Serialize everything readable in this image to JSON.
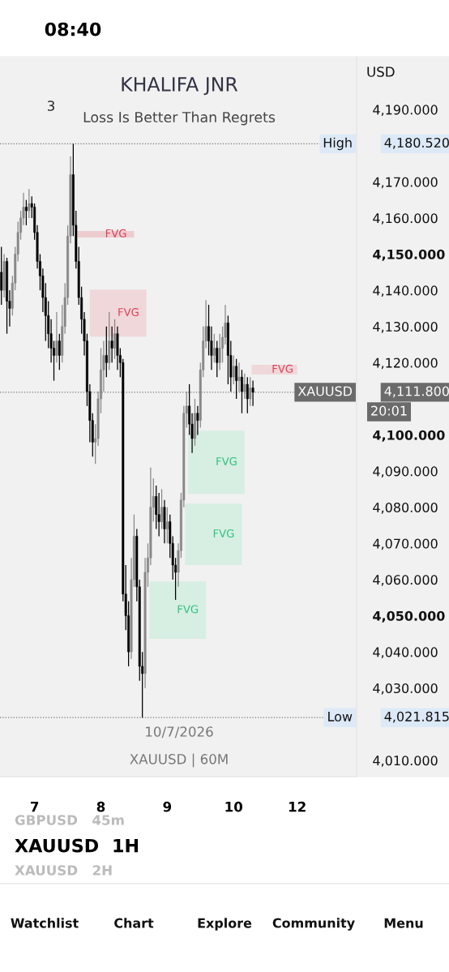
{
  "chart_data": {
    "type": "candlestick",
    "title": "KHALIFA JNR",
    "subtitle": "Loss Is Better Than Regrets",
    "categories": [
      null,
      null,
      null,
      null,
      null,
      null,
      null,
      null,
      null,
      null,
      null,
      null,
      "7",
      null,
      null,
      null,
      null,
      null,
      null,
      null,
      null,
      null,
      null,
      null,
      null,
      null,
      null,
      null,
      null,
      null,
      null,
      null,
      null,
      null,
      null,
      null,
      "8",
      null,
      null,
      null,
      null,
      null,
      null,
      null,
      null,
      null,
      null,
      null,
      null,
      null,
      null,
      null,
      null,
      null,
      null,
      null,
      null,
      null,
      null,
      null,
      "9",
      null,
      null,
      null,
      null,
      null,
      null,
      null,
      null,
      null,
      null,
      null,
      null,
      null,
      null,
      null,
      null,
      null,
      null,
      null,
      null,
      null,
      null,
      null,
      "10",
      null,
      null,
      null,
      null,
      null,
      null,
      null,
      null,
      null,
      null,
      null,
      null,
      null,
      null,
      null,
      null,
      null,
      null,
      null,
      null,
      null,
      null,
      "12",
      null,
      null,
      null,
      null,
      null,
      null,
      null,
      null,
      null,
      null,
      null,
      null,
      null,
      null,
      null,
      null,
      null,
      null,
      null,
      null,
      null
    ],
    "ohlc": [
      [
        4145,
        4152,
        4136,
        4140
      ],
      [
        4140,
        4150,
        4138,
        4148
      ],
      [
        4148,
        4149,
        4128,
        4137
      ],
      [
        4137,
        4140,
        4130,
        4135
      ],
      [
        4135,
        4144,
        4133,
        4142
      ],
      [
        4142,
        4152,
        4140,
        4150
      ],
      [
        4150,
        4159,
        4148,
        4156
      ],
      [
        4156,
        4162,
        4154,
        4160
      ],
      [
        4160,
        4167,
        4158,
        4163
      ],
      [
        4163,
        4165,
        4158,
        4162
      ],
      [
        4162,
        4168,
        4160,
        4164
      ],
      [
        4164,
        4166,
        4160,
        4163
      ],
      [
        4163,
        4164,
        4154,
        4156
      ],
      [
        4156,
        4158,
        4146,
        4148
      ],
      [
        4148,
        4150,
        4140,
        4144
      ],
      [
        4144,
        4146,
        4134,
        4138
      ],
      [
        4138,
        4142,
        4126,
        4133
      ],
      [
        4133,
        4137,
        4124,
        4128
      ],
      [
        4128,
        4132,
        4120,
        4124
      ],
      [
        4124,
        4126,
        4115,
        4122
      ],
      [
        4122,
        4134,
        4120,
        4126
      ],
      [
        4126,
        4128,
        4118,
        4122
      ],
      [
        4122,
        4136,
        4120,
        4130
      ],
      [
        4130,
        4142,
        4128,
        4138
      ],
      [
        4138,
        4158,
        4136,
        4155
      ],
      [
        4155,
        4177,
        4153,
        4172
      ],
      [
        4172,
        4180.52,
        4155,
        4158
      ],
      [
        4158,
        4162,
        4146,
        4148
      ],
      [
        4148,
        4152,
        4136,
        4138
      ],
      [
        4138,
        4141,
        4128,
        4132
      ],
      [
        4132,
        4134,
        4122,
        4126
      ],
      [
        4126,
        4128,
        4108,
        4112
      ],
      [
        4112,
        4114,
        4098,
        4104
      ],
      [
        4104,
        4106,
        4094,
        4098
      ],
      [
        4098,
        4103,
        4092,
        4099
      ],
      [
        4099,
        4112,
        4097,
        4110
      ],
      [
        4110,
        4124,
        4106,
        4118
      ],
      [
        4118,
        4126,
        4112,
        4122
      ],
      [
        4122,
        4130,
        4116,
        4120
      ],
      [
        4120,
        4134,
        4118,
        4126
      ],
      [
        4126,
        4130,
        4120,
        4124
      ],
      [
        4124,
        4132,
        4121,
        4128
      ],
      [
        4128,
        4130,
        4118,
        4122
      ],
      [
        4122,
        4124,
        4116,
        4120
      ],
      [
        4120,
        4121,
        4054,
        4056
      ],
      [
        4056,
        4064,
        4046,
        4050
      ],
      [
        4050,
        4054,
        4036,
        4040
      ],
      [
        4040,
        4066,
        4038,
        4060
      ],
      [
        4060,
        4078,
        4058,
        4072
      ],
      [
        4072,
        4074,
        4054,
        4058
      ],
      [
        4058,
        4060,
        4032,
        4036
      ],
      [
        4036,
        4040,
        4021.815,
        4034
      ],
      [
        4034,
        4066,
        4030,
        4062
      ],
      [
        4062,
        4070,
        4058,
        4066
      ],
      [
        4066,
        4091,
        4064,
        4080
      ],
      [
        4080,
        4088,
        4076,
        4083
      ],
      [
        4083,
        4086,
        4074,
        4078
      ],
      [
        4078,
        4084,
        4072,
        4076
      ],
      [
        4076,
        4085,
        4074,
        4080
      ],
      [
        4080,
        4082,
        4070,
        4074
      ],
      [
        4074,
        4080,
        4070,
        4076
      ],
      [
        4076,
        4078,
        4066,
        4070
      ],
      [
        4070,
        4072,
        4060,
        4064
      ],
      [
        4064,
        4066,
        4054.4,
        4062
      ],
      [
        4062,
        4070,
        4058,
        4068
      ],
      [
        4068,
        4084,
        4066,
        4082
      ],
      [
        4082,
        4108,
        4080,
        4106
      ],
      [
        4106,
        4112,
        4102,
        4108
      ],
      [
        4108,
        4114,
        4100,
        4103
      ],
      [
        4103,
        4106,
        4095,
        4099
      ],
      [
        4099,
        4110,
        4097,
        4106
      ],
      [
        4106,
        4108,
        4100,
        4104
      ],
      [
        4104,
        4120,
        4102,
        4118
      ],
      [
        4118,
        4130,
        4116,
        4126
      ],
      [
        4126,
        4137.3,
        4124,
        4130
      ],
      [
        4130,
        4136,
        4122,
        4126
      ],
      [
        4126,
        4130,
        4118,
        4122
      ],
      [
        4122,
        4128,
        4120,
        4124
      ],
      [
        4124,
        4126,
        4116,
        4120
      ],
      [
        4120,
        4128,
        4118,
        4124
      ],
      [
        4124,
        4130,
        4120,
        4127
      ],
      [
        4127,
        4136,
        4125,
        4131
      ],
      [
        4131,
        4133,
        4114,
        4122
      ],
      [
        4122,
        4126,
        4112,
        4116
      ],
      [
        4116,
        4122,
        4114,
        4119
      ],
      [
        4119,
        4121,
        4110,
        4115
      ],
      [
        4115,
        4120,
        4112,
        4116
      ],
      [
        4116,
        4118,
        4106,
        4112
      ],
      [
        4112,
        4117,
        4110,
        4114
      ],
      [
        4114,
        4116,
        4106,
        4110
      ],
      [
        4110,
        4116,
        4108,
        4113
      ],
      [
        4113,
        4115,
        4108,
        4111.8
      ],
      null,
      null,
      null,
      null,
      null,
      null,
      null,
      null,
      null,
      null,
      null,
      null,
      null,
      null,
      null,
      null,
      null,
      null,
      null,
      null,
      null,
      null,
      null,
      null,
      null,
      null,
      null,
      null,
      null,
      null,
      null,
      null,
      null,
      null,
      null,
      null,
      null
    ],
    "colors": [
      "#000000",
      "#888888",
      "#000000",
      "#000000",
      "#888888",
      "#888888",
      "#888888",
      "#888888",
      "#888888",
      "#000000",
      "#888888",
      "#000000",
      "#000000",
      "#000000",
      "#000000",
      "#000000",
      "#000000",
      "#000000",
      "#000000",
      "#000000",
      "#888888",
      "#000000",
      "#888888",
      "#888888",
      "#888888",
      "#888888",
      "#000000",
      "#000000",
      "#000000",
      "#000000",
      "#000000",
      "#000000",
      "#000000",
      "#000000",
      "#888888",
      "#888888",
      "#888888",
      "#888888",
      "#000000",
      "#888888",
      "#000000",
      "#888888",
      "#000000",
      "#000000",
      "#000000",
      "#000000",
      "#000000",
      "#888888",
      "#888888",
      "#000000",
      "#000000",
      "#000000",
      "#888888",
      "#888888",
      "#888888",
      "#888888",
      "#000000",
      "#000000",
      "#888888",
      "#000000",
      "#888888",
      "#000000",
      "#000000",
      "#000000",
      "#888888",
      "#888888",
      "#888888",
      "#888888",
      "#000000",
      "#000000",
      "#888888",
      "#000000",
      "#888888",
      "#888888",
      "#888888",
      "#000000",
      "#000000",
      "#888888",
      "#000000",
      "#888888",
      "#888888",
      "#888888",
      "#000000",
      "#000000",
      "#888888",
      "#000000",
      "#888888",
      "#000000",
      "#888888",
      "#000000",
      "#888888",
      "#000000",
      null,
      null,
      null,
      null,
      null,
      null,
      null,
      null,
      null,
      null,
      null,
      null,
      null,
      null,
      null,
      null,
      null,
      null,
      null,
      null,
      null,
      null,
      null,
      null,
      null,
      null,
      null,
      null,
      null,
      null,
      null,
      null,
      null,
      null,
      null,
      null,
      null
    ],
    "ylim": [
      4005.5,
      4204.6
    ],
    "yticks": [
      {
        "value": 4010,
        "label": "4,010.000"
      },
      {
        "value": 4030,
        "label": "4,030.000"
      },
      {
        "value": 4040,
        "label": "4,040.000"
      },
      {
        "value": 4050,
        "label": "4,050.000"
      },
      {
        "value": 4060,
        "label": "4,060.000"
      },
      {
        "value": 4070,
        "label": "4,070.000"
      },
      {
        "value": 4080,
        "label": "4,080.000"
      },
      {
        "value": 4090,
        "label": "4,090.000"
      },
      {
        "value": 4100,
        "label": "4,100.000"
      },
      {
        "value": 4120,
        "label": "4,120.000"
      },
      {
        "value": 4130,
        "label": "4,130.000"
      },
      {
        "value": 4140,
        "label": "4,140.000"
      },
      {
        "value": 4150,
        "label": "4,150.000"
      },
      {
        "value": 4160,
        "label": "4,160.000"
      },
      {
        "value": 4170,
        "label": "4,170.000"
      },
      {
        "value": 4190,
        "label": "4,190.000"
      }
    ],
    "ref_lines": [
      {
        "axis": "y",
        "value": 4180.52,
        "label": "High",
        "color": "#777777",
        "line_style": "dotted"
      },
      {
        "axis": "y",
        "value": 4021.815,
        "label": "Low",
        "color": "#777777",
        "line_style": "dotted"
      },
      {
        "axis": "y",
        "value": 4111.8,
        "label": "XAUUSD",
        "color": "#777777",
        "line_style": "dotted"
      }
    ],
    "bands": [
      {
        "axis": "y",
        "from": 4154.6,
        "to": 4156.4,
        "label": "FVG",
        "color": "#e8a0a8"
      },
      {
        "axis": "y",
        "from": 4127.2,
        "to": 4140.2,
        "label": "FVG",
        "color": "#f0b8bc"
      },
      {
        "axis": "y",
        "from": 4116.7,
        "to": 4119.4,
        "label": "FVG",
        "color": "#f0b8bc"
      },
      {
        "axis": "y",
        "from": 4083.7,
        "to": 4101.2,
        "label": "FVG",
        "color": "#b8ecd0"
      },
      {
        "axis": "y",
        "from": 4064,
        "to": 4081,
        "label": "FVG",
        "color": "#b8ecd0"
      },
      {
        "axis": "y",
        "from": 4043.6,
        "to": 4059.5,
        "label": "FVG",
        "color": "#b8ecd0"
      }
    ],
    "grid": false,
    "annotations": [
      "4,180.520",
      "4,021.815",
      "4,111.800",
      "08:40",
      "USD",
      "3",
      "10/7/2026",
      "XAUUSD | 60M",
      "20:01",
      "XAUUSD",
      "1H",
      "GBPUSD   45m",
      "XAUUSD   2H",
      "Watchlist",
      "Chart",
      "Explore",
      "Community",
      "Menu"
    ]
  }
}
